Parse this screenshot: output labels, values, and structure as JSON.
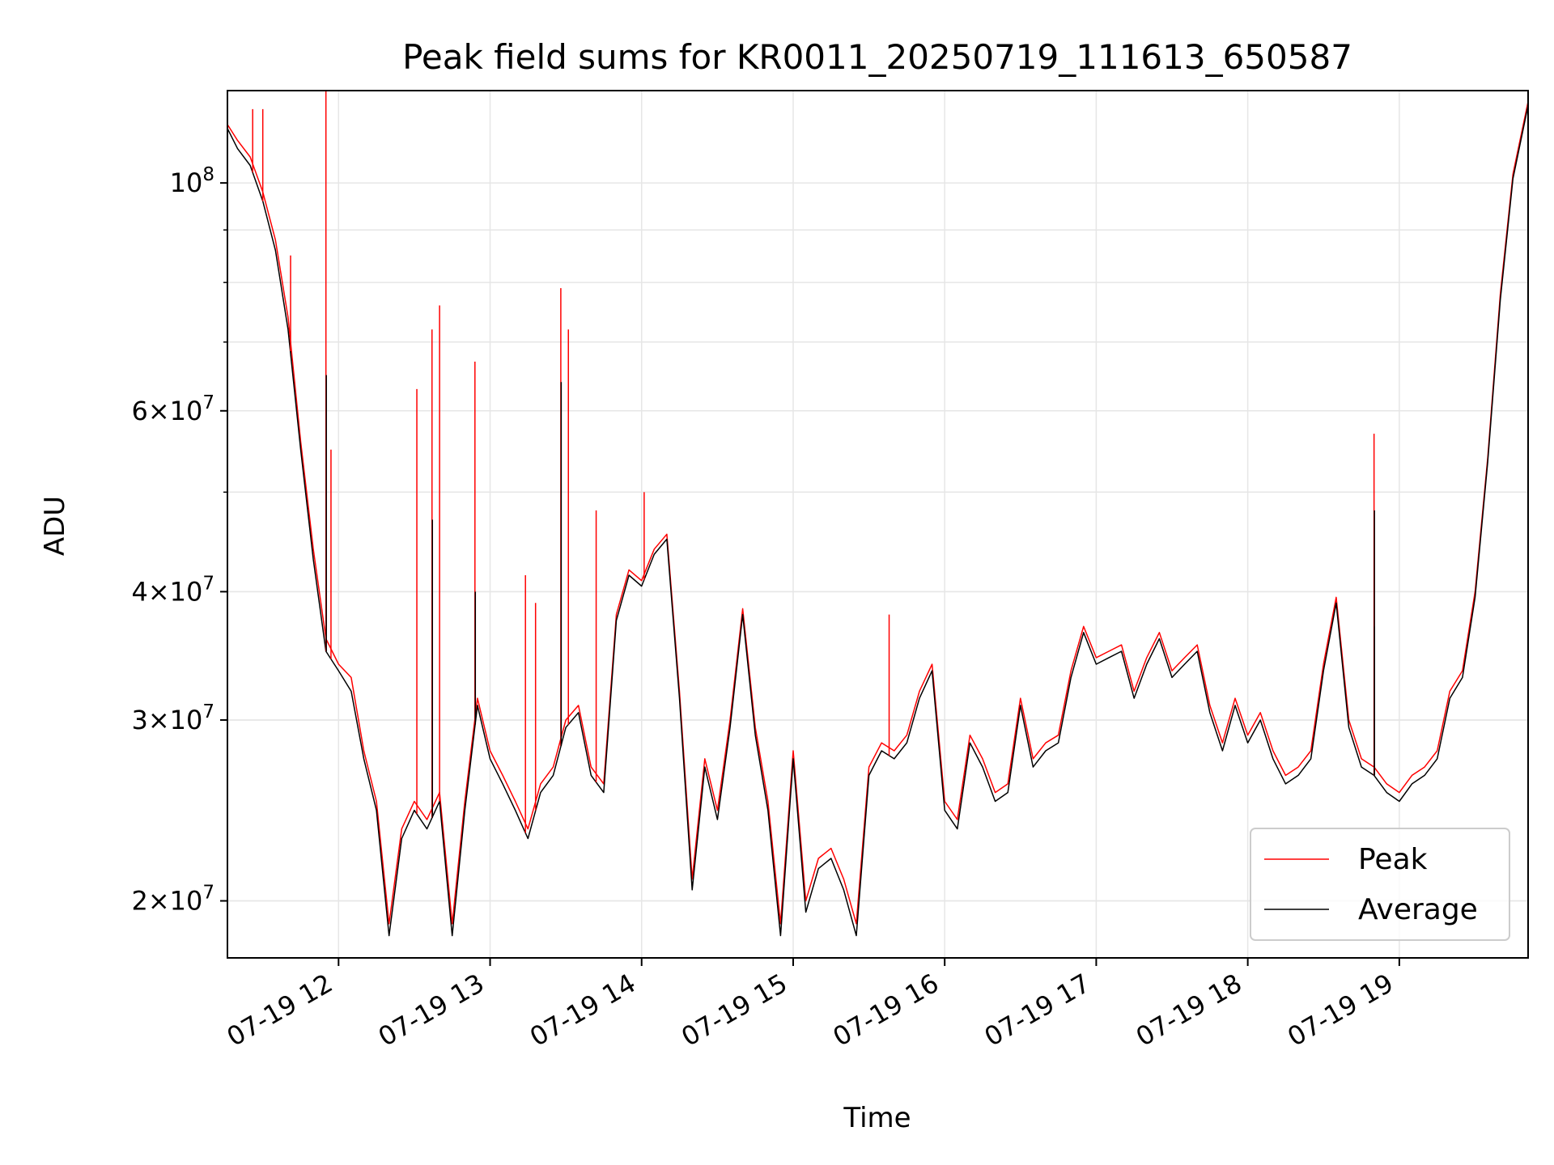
{
  "chart_data": {
    "type": "line",
    "title": "Peak field sums for KR0011_20250719_111613_650587",
    "xlabel": "Time",
    "ylabel": "ADU",
    "yscale": "log",
    "ylim": [
      17600000,
      123000000
    ],
    "xlim": [
      "07-19 11:16",
      "07-19 19:51"
    ],
    "grid": true,
    "legend": "lower-right",
    "x_ticks": [
      "07-19 12",
      "07-19 13",
      "07-19 14",
      "07-19 15",
      "07-19 16",
      "07-19 17",
      "07-19 18",
      "07-19 19"
    ],
    "y_ticks": [
      {
        "value": 20000000,
        "mant": "2",
        "base": "10",
        "exp": "7"
      },
      {
        "value": 30000000,
        "mant": "3",
        "base": "10",
        "exp": "7"
      },
      {
        "value": 40000000,
        "mant": "4",
        "base": "10",
        "exp": "7"
      },
      {
        "value": 60000000,
        "mant": "6",
        "base": "10",
        "exp": "7"
      },
      {
        "value": 100000000,
        "mant": "",
        "base": "10",
        "exp": "8"
      }
    ],
    "colors": {
      "peak": "#ff0000",
      "average": "#000000",
      "grid": "#e6e6e6"
    },
    "x": [
      "07-19 11:16",
      "07-19 11:20",
      "07-19 11:25",
      "07-19 11:30",
      "07-19 11:35",
      "07-19 11:40",
      "07-19 11:45",
      "07-19 11:50",
      "07-19 11:55",
      "07-19 12:00",
      "07-19 12:05",
      "07-19 12:10",
      "07-19 12:15",
      "07-19 12:20",
      "07-19 12:25",
      "07-19 12:30",
      "07-19 12:35",
      "07-19 12:40",
      "07-19 12:45",
      "07-19 12:50",
      "07-19 12:55",
      "07-19 13:00",
      "07-19 13:05",
      "07-19 13:10",
      "07-19 13:15",
      "07-19 13:20",
      "07-19 13:25",
      "07-19 13:30",
      "07-19 13:35",
      "07-19 13:40",
      "07-19 13:45",
      "07-19 13:50",
      "07-19 13:55",
      "07-19 14:00",
      "07-19 14:05",
      "07-19 14:10",
      "07-19 14:15",
      "07-19 14:20",
      "07-19 14:25",
      "07-19 14:30",
      "07-19 14:35",
      "07-19 14:40",
      "07-19 14:45",
      "07-19 14:50",
      "07-19 14:55",
      "07-19 15:00",
      "07-19 15:05",
      "07-19 15:10",
      "07-19 15:15",
      "07-19 15:20",
      "07-19 15:25",
      "07-19 15:30",
      "07-19 15:35",
      "07-19 15:40",
      "07-19 15:45",
      "07-19 15:50",
      "07-19 15:55",
      "07-19 16:00",
      "07-19 16:05",
      "07-19 16:10",
      "07-19 16:15",
      "07-19 16:20",
      "07-19 16:25",
      "07-19 16:30",
      "07-19 16:35",
      "07-19 16:40",
      "07-19 16:45",
      "07-19 16:50",
      "07-19 16:55",
      "07-19 17:00",
      "07-19 17:05",
      "07-19 17:10",
      "07-19 17:15",
      "07-19 17:20",
      "07-19 17:25",
      "07-19 17:30",
      "07-19 17:35",
      "07-19 17:40",
      "07-19 17:45",
      "07-19 17:50",
      "07-19 17:55",
      "07-19 18:00",
      "07-19 18:05",
      "07-19 18:10",
      "07-19 18:15",
      "07-19 18:20",
      "07-19 18:25",
      "07-19 18:30",
      "07-19 18:35",
      "07-19 18:40",
      "07-19 18:45",
      "07-19 18:50",
      "07-19 18:55",
      "07-19 19:00",
      "07-19 19:05",
      "07-19 19:10",
      "07-19 19:15",
      "07-19 19:20",
      "07-19 19:25",
      "07-19 19:30",
      "07-19 19:35",
      "07-19 19:40",
      "07-19 19:45",
      "07-19 19:51"
    ],
    "series": [
      {
        "name": "Peak",
        "values": [
          114000000,
          110000000,
          106000000,
          98000000,
          88000000,
          74000000,
          56000000,
          44000000,
          36000000,
          34000000,
          33000000,
          28000000,
          25000000,
          19000000,
          23500000,
          25000000,
          24000000,
          25500000,
          19000000,
          25000000,
          31500000,
          28000000,
          26500000,
          25000000,
          23500000,
          26000000,
          27000000,
          30000000,
          31000000,
          27000000,
          26000000,
          38000000,
          42000000,
          41000000,
          44000000,
          45500000,
          32000000,
          21000000,
          27500000,
          24500000,
          30000000,
          38500000,
          29500000,
          25000000,
          19000000,
          28000000,
          20000000,
          22000000,
          22500000,
          21000000,
          19000000,
          27000000,
          28500000,
          28000000,
          29000000,
          32000000,
          34000000,
          25000000,
          24000000,
          29000000,
          27500000,
          25500000,
          26000000,
          31500000,
          27500000,
          28500000,
          29000000,
          33500000,
          37000000,
          34500000,
          35000000,
          35500000,
          32000000,
          34500000,
          36500000,
          33500000,
          34500000,
          35500000,
          31000000,
          28500000,
          31500000,
          29000000,
          30500000,
          28000000,
          26500000,
          27000000,
          28000000,
          34000000,
          39500000,
          30000000,
          27500000,
          27000000,
          26000000,
          25500000,
          26500000,
          27000000,
          28000000,
          32000000,
          33500000,
          40000000,
          54000000,
          78000000,
          102000000,
          120000000
        ]
      },
      {
        "name": "Average",
        "values": [
          113000000,
          108000000,
          104000000,
          96000000,
          86000000,
          72000000,
          55000000,
          43000000,
          35000000,
          33500000,
          32000000,
          27500000,
          24500000,
          18500000,
          23000000,
          24500000,
          23500000,
          25000000,
          18500000,
          24500000,
          31000000,
          27500000,
          26000000,
          24500000,
          23000000,
          25500000,
          26500000,
          29500000,
          30500000,
          26500000,
          25500000,
          37500000,
          41500000,
          40500000,
          43500000,
          45000000,
          31500000,
          20500000,
          27000000,
          24000000,
          29500000,
          38000000,
          29000000,
          24500000,
          18500000,
          27500000,
          19500000,
          21500000,
          22000000,
          20500000,
          18500000,
          26500000,
          28000000,
          27500000,
          28500000,
          31500000,
          33500000,
          24500000,
          23500000,
          28500000,
          27000000,
          25000000,
          25500000,
          31000000,
          27000000,
          28000000,
          28500000,
          33000000,
          36500000,
          34000000,
          34500000,
          35000000,
          31500000,
          34000000,
          36000000,
          33000000,
          34000000,
          35000000,
          30500000,
          28000000,
          31000000,
          28500000,
          30000000,
          27500000,
          26000000,
          26500000,
          27500000,
          33500000,
          39000000,
          29500000,
          27000000,
          26500000,
          25500000,
          25000000,
          26000000,
          26500000,
          27500000,
          31500000,
          33000000,
          39500000,
          53500000,
          77000000,
          101000000,
          119000000
        ]
      }
    ],
    "spikes": [
      {
        "x": "07-19 11:26",
        "peak": 118000000
      },
      {
        "x": "07-19 11:30",
        "peak": 118000000
      },
      {
        "x": "07-19 11:41",
        "peak": 85000000
      },
      {
        "x": "07-19 11:55",
        "peak": 123000000,
        "average": 65000000
      },
      {
        "x": "07-19 11:57",
        "peak": 55000000
      },
      {
        "x": "07-19 12:31",
        "peak": 63000000
      },
      {
        "x": "07-19 12:37",
        "peak": 72000000,
        "average": 47000000
      },
      {
        "x": "07-19 12:40",
        "peak": 76000000
      },
      {
        "x": "07-19 12:54",
        "peak": 67000000,
        "average": 40000000
      },
      {
        "x": "07-19 13:14",
        "peak": 41500000
      },
      {
        "x": "07-19 13:18",
        "peak": 39000000
      },
      {
        "x": "07-19 13:28",
        "peak": 79000000,
        "average": 64000000
      },
      {
        "x": "07-19 13:31",
        "peak": 72000000
      },
      {
        "x": "07-19 13:42",
        "peak": 48000000
      },
      {
        "x": "07-19 14:01",
        "peak": 50000000
      },
      {
        "x": "07-19 15:38",
        "peak": 38000000
      },
      {
        "x": "07-19 18:50",
        "peak": 57000000,
        "average": 48000000
      },
      {
        "x": "07-19 18:50",
        "average": 37000000
      }
    ]
  }
}
